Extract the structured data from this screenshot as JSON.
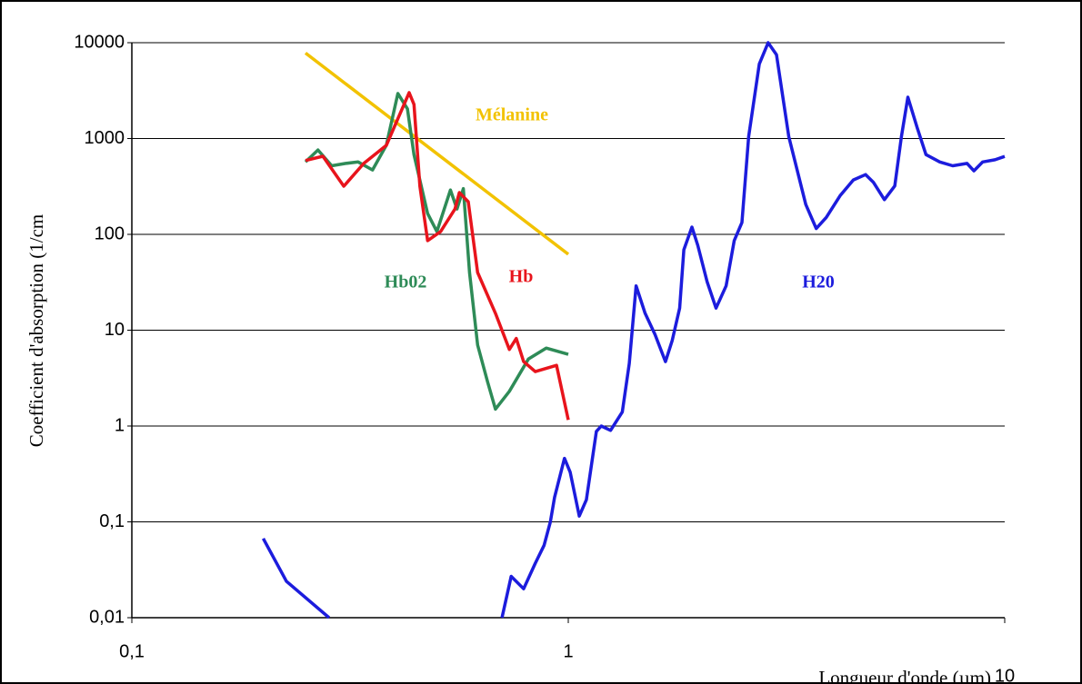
{
  "chart_data": {
    "type": "line",
    "log_x": true,
    "log_y": true,
    "grid": true,
    "x_label": "Longueur d'onde (µm)",
    "y_label": "Coefficient d'absorption (1/cm",
    "xlim": [
      0.1,
      10
    ],
    "xticks": [
      {
        "value": 0.1,
        "label": "0,1"
      },
      1,
      10
    ],
    "ylim": [
      0.01,
      10000
    ],
    "yticks": [
      10000,
      1000,
      100,
      10,
      1,
      {
        "value": 0.1,
        "label": "0,1"
      },
      {
        "value": 0.01,
        "label": "0,01"
      }
    ],
    "annotations": [
      {
        "text": "Mélanine",
        "color": "#f2c200"
      },
      {
        "text": "Hb02",
        "color": "#2e8b57"
      },
      {
        "text": "Hb",
        "color": "#e8141c"
      },
      {
        "text": "H20",
        "color": "#1c1cdd"
      }
    ],
    "series": [
      {
        "name": "Mélanine",
        "color": "#f2c200",
        "x": [
          0.25,
          1.0
        ],
        "values": [
          7800,
          62
        ]
      },
      {
        "name": "Hb02",
        "color": "#2e8b57",
        "x": [
          0.25,
          0.267,
          0.287,
          0.309,
          0.33,
          0.356,
          0.383,
          0.407,
          0.428,
          0.443,
          0.476,
          0.5,
          0.537,
          0.556,
          0.575,
          0.594,
          0.62,
          0.653,
          0.681,
          0.733,
          0.81,
          0.89,
          1.0
        ],
        "values": [
          570,
          760,
          520,
          550,
          570,
          470,
          850,
          2950,
          2040,
          680,
          165,
          107,
          290,
          184,
          300,
          40,
          7,
          2.9,
          1.5,
          2.3,
          5,
          6.5,
          5.6
        ]
      },
      {
        "name": "Hb",
        "color": "#e8141c",
        "x": [
          0.25,
          0.274,
          0.306,
          0.34,
          0.383,
          0.432,
          0.443,
          0.457,
          0.476,
          0.51,
          0.55,
          0.563,
          0.59,
          0.62,
          0.681,
          0.733,
          0.76,
          0.79,
          0.84,
          0.94,
          1.0
        ],
        "values": [
          590,
          653,
          318,
          550,
          849,
          3010,
          2270,
          318,
          86,
          107,
          184,
          273,
          219,
          40,
          15,
          6.3,
          8.2,
          4.7,
          3.7,
          4.3,
          1.16
        ]
      },
      {
        "name": "H20",
        "color": "#1c1cdd",
        "x": [
          0.2,
          0.226,
          0.283,
          null,
          0.705,
          0.74,
          0.79,
          0.84,
          0.88,
          0.91,
          0.93,
          0.98,
          1.01,
          1.06,
          1.1,
          1.16,
          1.19,
          1.25,
          1.33,
          1.38,
          1.43,
          1.5,
          1.58,
          1.67,
          1.73,
          1.8,
          1.84,
          1.92,
          1.98,
          2.08,
          2.18,
          2.3,
          2.4,
          2.5,
          2.59,
          2.74,
          2.87,
          3.0,
          3.2,
          3.5,
          3.7,
          3.9,
          4.2,
          4.5,
          4.8,
          5.0,
          5.3,
          5.6,
          5.8,
          6.0,
          6.3,
          6.6,
          7.1,
          7.6,
          8.2,
          8.5,
          8.9,
          9.5,
          10
        ],
        "values": [
          0.067,
          0.024,
          0.01,
          null,
          0.01,
          0.027,
          0.02,
          0.037,
          0.057,
          0.1,
          0.18,
          0.46,
          0.33,
          0.115,
          0.17,
          0.88,
          1.0,
          0.9,
          1.4,
          4.5,
          29,
          15,
          9,
          4.7,
          7.8,
          17,
          69,
          119,
          77,
          32,
          17,
          29,
          86,
          133,
          1050,
          6000,
          10000,
          7500,
          1050,
          205,
          115,
          150,
          255,
          370,
          420,
          350,
          230,
          320,
          1050,
          2700,
          1300,
          680,
          570,
          520,
          550,
          460,
          570,
          600,
          650
        ]
      }
    ]
  }
}
